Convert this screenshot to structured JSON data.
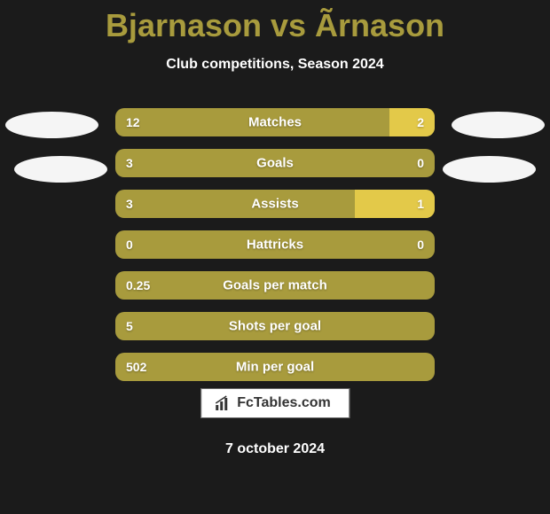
{
  "title": "Bjarnason vs Ãrnason",
  "subtitle": "Club competitions, Season 2024",
  "date": "7 october 2024",
  "watermark": {
    "text": "FcTables.com"
  },
  "colors": {
    "background": "#1b1b1b",
    "bar_main": "#a89b3d",
    "bar_accent": "#e3c949",
    "title_color": "#a89b3d",
    "text_color": "#ffffff"
  },
  "stats": [
    {
      "label": "Matches",
      "left_value": "12",
      "right_value": "2",
      "right_pct": 14.3
    },
    {
      "label": "Goals",
      "left_value": "3",
      "right_value": "0",
      "right_pct": 0
    },
    {
      "label": "Assists",
      "left_value": "3",
      "right_value": "1",
      "right_pct": 25
    },
    {
      "label": "Hattricks",
      "left_value": "0",
      "right_value": "0",
      "right_pct": 0
    },
    {
      "label": "Goals per match",
      "left_value": "0.25",
      "right_value": "",
      "right_pct": 0
    },
    {
      "label": "Shots per goal",
      "left_value": "5",
      "right_value": "",
      "right_pct": 0
    },
    {
      "label": "Min per goal",
      "left_value": "502",
      "right_value": "",
      "right_pct": 0
    }
  ]
}
